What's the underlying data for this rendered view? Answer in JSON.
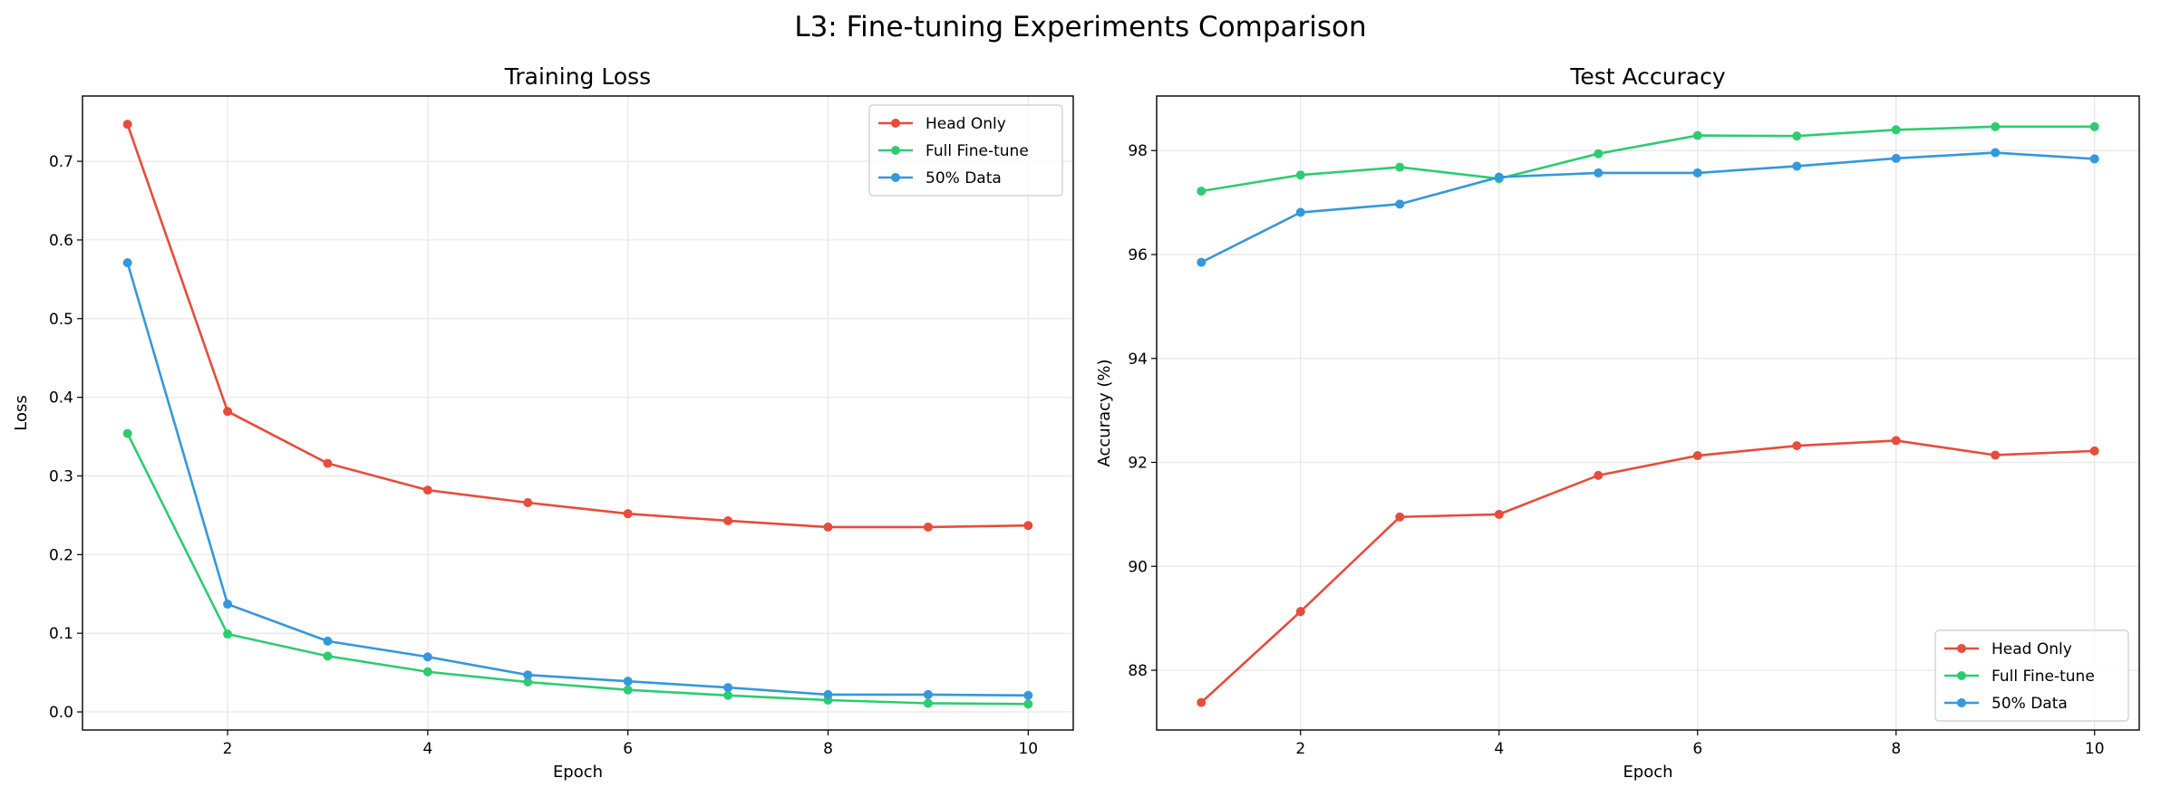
{
  "suptitle": "L3: Fine-tuning Experiments Comparison",
  "colors": {
    "Head Only": "#e74c3c",
    "Full Fine-tune": "#2ecc71",
    "50% Data": "#3498db"
  },
  "chart_data": [
    {
      "type": "line",
      "title": "Training Loss",
      "xlabel": "Epoch",
      "ylabel": "Loss",
      "x": [
        1,
        2,
        3,
        4,
        5,
        6,
        7,
        8,
        9,
        10
      ],
      "xlim": [
        0.55,
        10.45
      ],
      "ylim": [
        -0.023,
        0.783
      ],
      "xticks": [
        2,
        4,
        6,
        8,
        10
      ],
      "yticks": [
        0.0,
        0.1,
        0.2,
        0.3,
        0.4,
        0.5,
        0.6,
        0.7
      ],
      "ytick_labels": [
        "0.0",
        "0.1",
        "0.2",
        "0.3",
        "0.4",
        "0.5",
        "0.6",
        "0.7"
      ],
      "grid": true,
      "legend": "top-right",
      "series": [
        {
          "name": "Head Only",
          "values": [
            0.747,
            0.382,
            0.316,
            0.282,
            0.266,
            0.252,
            0.243,
            0.235,
            0.235,
            0.237
          ]
        },
        {
          "name": "Full Fine-tune",
          "values": [
            0.354,
            0.099,
            0.071,
            0.051,
            0.038,
            0.028,
            0.021,
            0.015,
            0.011,
            0.01
          ]
        },
        {
          "name": "50% Data",
          "values": [
            0.571,
            0.137,
            0.09,
            0.07,
            0.047,
            0.039,
            0.031,
            0.022,
            0.022,
            0.021
          ]
        }
      ]
    },
    {
      "type": "line",
      "title": "Test Accuracy",
      "xlabel": "Epoch",
      "ylabel": "Accuracy (%)",
      "x": [
        1,
        2,
        3,
        4,
        5,
        6,
        7,
        8,
        9,
        10
      ],
      "xlim": [
        0.55,
        10.45
      ],
      "ylim": [
        86.85,
        99.05
      ],
      "xticks": [
        2,
        4,
        6,
        8,
        10
      ],
      "yticks": [
        88,
        90,
        92,
        94,
        96,
        98
      ],
      "ytick_labels": [
        "88",
        "90",
        "92",
        "94",
        "96",
        "98"
      ],
      "grid": true,
      "legend": "bottom-right",
      "series": [
        {
          "name": "Head Only",
          "values": [
            87.38,
            89.13,
            90.95,
            91.0,
            91.75,
            92.13,
            92.32,
            92.42,
            92.14,
            92.22
          ]
        },
        {
          "name": "Full Fine-tune",
          "values": [
            97.22,
            97.53,
            97.68,
            97.46,
            97.94,
            98.29,
            98.28,
            98.4,
            98.46,
            98.46
          ]
        },
        {
          "name": "50% Data",
          "values": [
            95.85,
            96.81,
            96.97,
            97.49,
            97.57,
            97.57,
            97.7,
            97.85,
            97.96,
            97.84
          ]
        }
      ]
    }
  ]
}
